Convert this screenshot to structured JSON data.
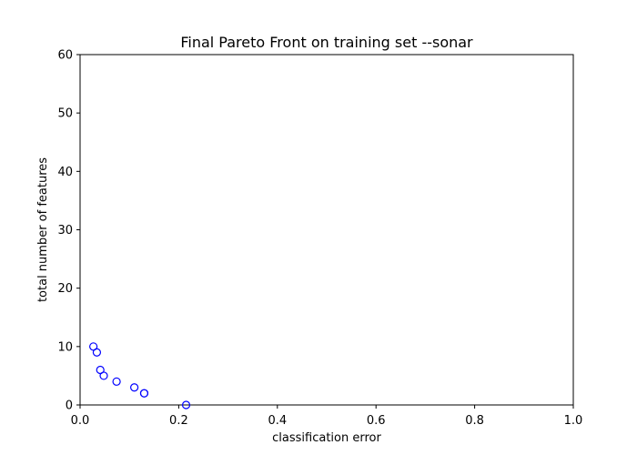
{
  "chart_data": {
    "type": "scatter",
    "title": "Final Pareto Front on training set --sonar",
    "xlabel": "classification error",
    "ylabel": "total number of features",
    "xlim": [
      0,
      1
    ],
    "ylim": [
      0,
      60
    ],
    "xticks": [
      "0.0",
      "0.2",
      "0.4",
      "0.6",
      "0.8",
      "1.0"
    ],
    "yticks": [
      "0",
      "10",
      "20",
      "30",
      "40",
      "50",
      "60"
    ],
    "grid": false,
    "marker": "open-circle",
    "color": "#0000ff",
    "series": [
      {
        "x": [
          0.027,
          0.034,
          0.041,
          0.048,
          0.074,
          0.11,
          0.13,
          0.13,
          0.215
        ],
        "y": [
          10,
          9,
          6,
          5,
          4,
          3,
          2,
          2,
          0
        ]
      }
    ]
  }
}
